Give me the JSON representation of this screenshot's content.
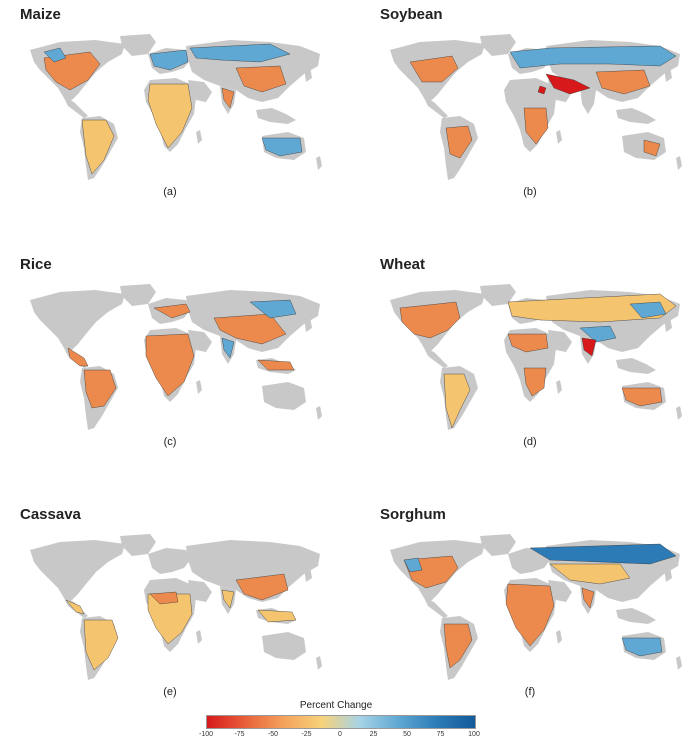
{
  "panels": [
    {
      "title": "Maize",
      "label": "(a)"
    },
    {
      "title": "Soybean",
      "label": "(b)"
    },
    {
      "title": "Rice",
      "label": "(c)"
    },
    {
      "title": "Wheat",
      "label": "(d)"
    },
    {
      "title": "Cassava",
      "label": "(e)"
    },
    {
      "title": "Sorghum",
      "label": "(f)"
    }
  ],
  "legend": {
    "title": "Percent Change",
    "ticks": [
      "-100",
      "-75",
      "-50",
      "-25",
      "0",
      "25",
      "50",
      "75",
      "100"
    ],
    "colors": [
      "#d7191c",
      "#e8603a",
      "#f4a25c",
      "#f7d27a",
      "#a6d3e6",
      "#5fa8d3",
      "#2c7bb6",
      "#125b9a"
    ]
  },
  "colors": {
    "background_land": "#c8c8c8",
    "strong_decrease": "#d7191c",
    "moderate_decrease": "#ec8a4e",
    "slight_decrease": "#f5c46e",
    "increase": "#5fa8d3",
    "strong_increase": "#2c7bb6"
  }
}
